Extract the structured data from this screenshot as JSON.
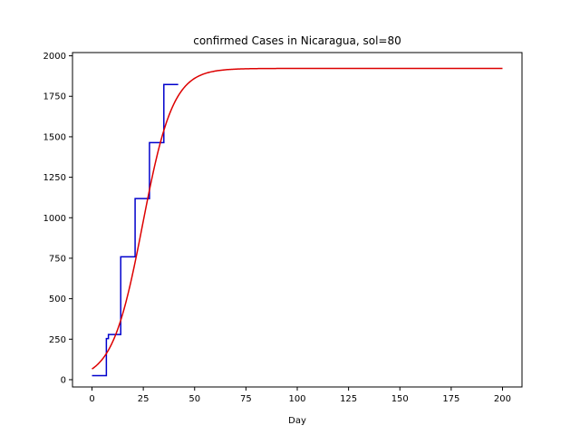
{
  "chart_data": {
    "type": "line",
    "title": "confirmed Cases in Nicaragua, sol=80",
    "xlabel": "Day",
    "ylabel": "",
    "xlim": [
      -9.5,
      209.5
    ],
    "ylim": [
      -45,
      2020
    ],
    "xticks": [
      0,
      25,
      50,
      75,
      100,
      125,
      150,
      175,
      200
    ],
    "yticks": [
      0,
      250,
      500,
      750,
      1000,
      1250,
      1500,
      1750,
      2000
    ],
    "grid": false,
    "series": [
      {
        "kind": "step",
        "color": "#0000cc",
        "points": [
          [
            0,
            25
          ],
          [
            7,
            25
          ],
          [
            7,
            254
          ],
          [
            8,
            254
          ],
          [
            8,
            279
          ],
          [
            14,
            279
          ],
          [
            14,
            759
          ],
          [
            21,
            759
          ],
          [
            21,
            1118
          ],
          [
            28,
            1118
          ],
          [
            28,
            1464
          ],
          [
            35,
            1464
          ],
          [
            35,
            1823
          ],
          [
            42,
            1823
          ]
        ]
      },
      {
        "kind": "logistic",
        "color": "#dd0000",
        "capacity": 1922,
        "midpoint_day": 24.7,
        "rate": 0.135,
        "x_start": 0,
        "x_end": 200
      }
    ]
  }
}
